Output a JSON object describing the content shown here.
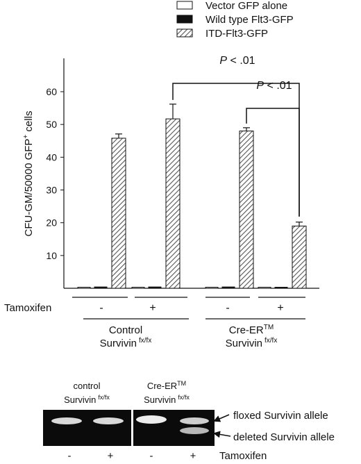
{
  "legend": {
    "items": [
      {
        "label": "Vector GFP alone",
        "pattern": "white"
      },
      {
        "label": "Wild type Flt3-GFP",
        "pattern": "black"
      },
      {
        "label": "ITD-Flt3-GFP",
        "pattern": "hatch"
      }
    ]
  },
  "chart_data": {
    "type": "bar",
    "ylabel_main": "CFU-GM/50000 GFP",
    "ylabel_sup": "+",
    "ylabel_tail": " cells",
    "ylim": [
      0,
      65
    ],
    "yticks": [
      10,
      20,
      30,
      40,
      50,
      60
    ],
    "categories": [
      "Control Survivin fx/fx, Tamoxifen -",
      "Control Survivin fx/fx, Tamoxifen +",
      "Cre-ERTM Survivin fx/fx, Tamoxifen -",
      "Cre-ERTM Survivin fx/fx, Tamoxifen +"
    ],
    "series": [
      {
        "name": "Vector GFP alone",
        "values": [
          0.3,
          0.3,
          0.3,
          0.2
        ],
        "errors": [
          0,
          0,
          0,
          0
        ]
      },
      {
        "name": "Wild type Flt3-GFP",
        "values": [
          0.4,
          0.4,
          0.4,
          0.3
        ],
        "errors": [
          0,
          0,
          0,
          0
        ]
      },
      {
        "name": "ITD-Flt3-GFP",
        "values": [
          45.8,
          51.7,
          48.0,
          19.0
        ],
        "errors": [
          1.3,
          4.5,
          1.0,
          1.2
        ]
      }
    ],
    "tamoxifen_label": "Tamoxifen",
    "tamoxifen_signs": [
      "-",
      "+",
      "-",
      "+"
    ],
    "groups": [
      {
        "line1": "Control",
        "line2": "Survivin",
        "sup2": "fx/fx"
      },
      {
        "line1": "Cre-ER",
        "sup1": "TM",
        "line2": "Survivin",
        "sup2": "fx/fx"
      }
    ],
    "annotations": [
      {
        "p": "P",
        "text": " < .01",
        "from": 1,
        "to": 3
      },
      {
        "p": "P",
        "text": " < .01",
        "from": 2,
        "to": 3
      }
    ]
  },
  "gel": {
    "groups": [
      {
        "line1": "control",
        "line2": "Survivin",
        "sup": "fx/fx"
      },
      {
        "line1": "Cre-ER",
        "sup1": "TM",
        "line2": "Survivin",
        "sup": "fx/fx"
      }
    ],
    "lane_signs": [
      "-",
      "+",
      "-",
      "+"
    ],
    "tamoxifen_label": "Tamoxifen",
    "band_labels": [
      "floxed Survivin allele",
      "deleted Survivin allele"
    ]
  }
}
